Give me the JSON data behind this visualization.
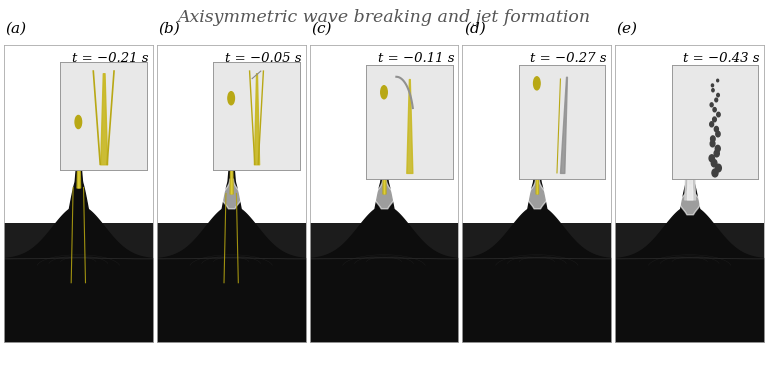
{
  "title": "Axisymmetric wave breaking and jet formation",
  "title_fontsize": 12.5,
  "title_color": "#555555",
  "background_color": "#ffffff",
  "panels": [
    {
      "label": "(a)",
      "time": "t = −0.21 s",
      "jet_color": "#b8a815",
      "has_drop": true,
      "has_lines": true,
      "jet_taller": false,
      "inset_style": "a"
    },
    {
      "label": "(b)",
      "time": "t = −0.05 s",
      "jet_color": "#b8a815",
      "has_drop": true,
      "has_lines": true,
      "jet_taller": true,
      "inset_style": "b"
    },
    {
      "label": "(c)",
      "time": "t = −0.11 s",
      "jet_color": "#b8a815",
      "has_drop": true,
      "has_lines": false,
      "jet_taller": true,
      "inset_style": "c"
    },
    {
      "label": "(d)",
      "time": "t = −0.27 s",
      "jet_color": "#b8a815",
      "has_drop": true,
      "has_lines": false,
      "jet_taller": true,
      "inset_style": "d"
    },
    {
      "label": "(e)",
      "time": "t = −0.43 s",
      "jet_color": "#c8c8c8",
      "has_drop": false,
      "has_lines": false,
      "jet_taller": true,
      "inset_style": "e"
    }
  ],
  "panel_dark_color": "#111111",
  "panel_mid_color": "#222222",
  "wave_color": "#1c1c1c",
  "inset_bg": "#f0f0f0",
  "label_fontsize": 11,
  "time_fontsize": 9.5
}
